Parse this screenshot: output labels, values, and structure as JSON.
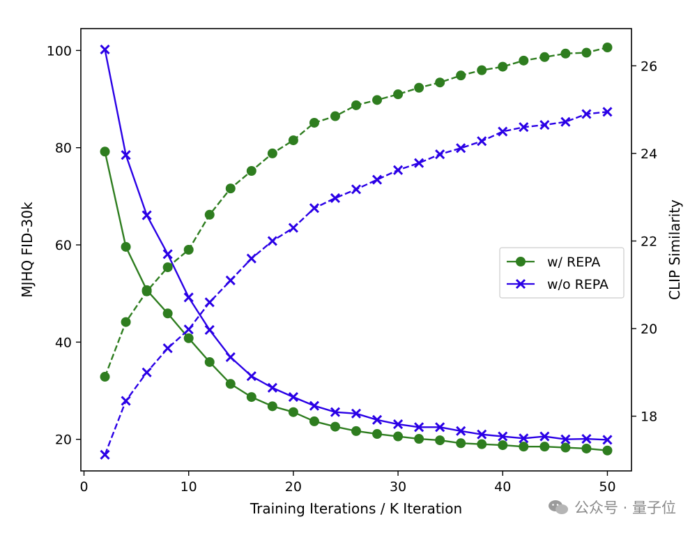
{
  "chart_data": {
    "type": "line",
    "xlabel": "Training Iterations / K Iteration",
    "ylabel_left": "MJHQ FID-30k",
    "ylabel_right": "CLIP Similarity",
    "xlim": [
      -0.3,
      52.3
    ],
    "ylim_left": [
      13.5,
      104.5
    ],
    "ylim_right": [
      16.75,
      26.85
    ],
    "x_ticks": [
      0,
      10,
      20,
      30,
      40,
      50
    ],
    "y_left_ticks": [
      20,
      40,
      60,
      80,
      100
    ],
    "y_right_ticks": [
      18,
      20,
      22,
      24,
      26
    ],
    "x": [
      2,
      4,
      6,
      8,
      10,
      12,
      14,
      16,
      18,
      20,
      22,
      24,
      26,
      28,
      30,
      32,
      34,
      36,
      38,
      40,
      42,
      44,
      46,
      48,
      50
    ],
    "colors": {
      "repa": "#2e7d1f",
      "no_repa": "#2a00e6"
    },
    "legend": [
      {
        "label": "w/ REPA",
        "marker": "circle"
      },
      {
        "label": "w/o REPA",
        "marker": "x"
      }
    ],
    "series": [
      {
        "name": "w/ REPA FID",
        "axis": "left",
        "style": "solid",
        "marker": "circle",
        "color_key": "repa",
        "values": [
          79.2,
          59.6,
          50.7,
          45.9,
          40.8,
          35.9,
          31.4,
          28.7,
          26.8,
          25.6,
          23.7,
          22.6,
          21.7,
          21.1,
          20.6,
          20.1,
          19.8,
          19.2,
          19.0,
          18.8,
          18.5,
          18.5,
          18.3,
          18.1,
          17.7
        ]
      },
      {
        "name": "w/o REPA FID",
        "axis": "left",
        "style": "solid",
        "marker": "x",
        "color_key": "no_repa",
        "values": [
          100.2,
          78.5,
          66.1,
          58.1,
          49.2,
          42.5,
          36.9,
          33.0,
          30.6,
          28.7,
          26.9,
          25.6,
          25.3,
          24.0,
          23.1,
          22.5,
          22.5,
          21.7,
          21.0,
          20.6,
          20.2,
          20.6,
          20.0,
          20.1,
          19.9
        ]
      },
      {
        "name": "w/ REPA CLIP",
        "axis": "right",
        "style": "dashed",
        "marker": "circle",
        "color_key": "repa",
        "values": [
          18.9,
          20.15,
          20.85,
          21.4,
          21.8,
          22.6,
          23.2,
          23.6,
          24.0,
          24.3,
          24.7,
          24.85,
          25.1,
          25.22,
          25.35,
          25.5,
          25.62,
          25.78,
          25.9,
          25.98,
          26.12,
          26.2,
          26.28,
          26.3,
          26.42
        ]
      },
      {
        "name": "w/o REPA CLIP",
        "axis": "right",
        "style": "dashed",
        "marker": "x",
        "color_key": "no_repa",
        "values": [
          17.12,
          18.35,
          19.0,
          19.55,
          19.98,
          20.6,
          21.1,
          21.6,
          22.0,
          22.3,
          22.75,
          22.98,
          23.18,
          23.4,
          23.62,
          23.78,
          23.98,
          24.12,
          24.28,
          24.5,
          24.6,
          24.65,
          24.72,
          24.9,
          24.95
        ]
      }
    ]
  },
  "watermark": {
    "icon": "wechat-icon",
    "text": "公众号 · 量子位"
  }
}
